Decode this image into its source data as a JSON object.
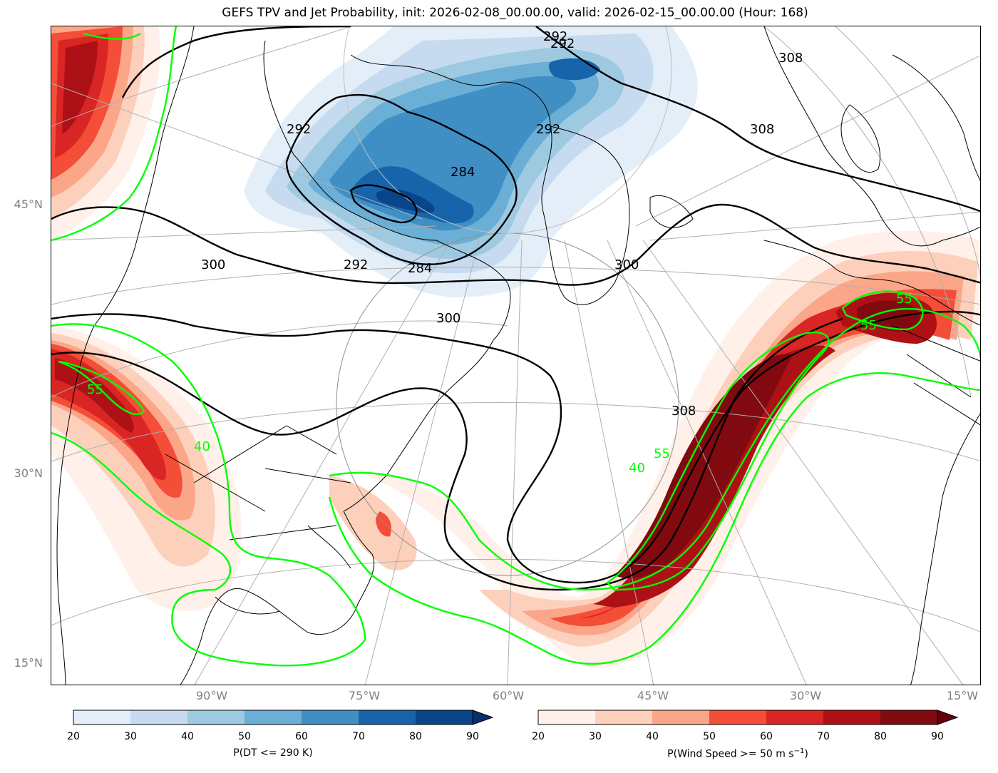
{
  "title": "GEFS TPV and Jet Probability, init: 2026-02-08_00.00.00, valid: 2026-02-15_00.00.00 (Hour: 168)",
  "lat_labels": [
    "45°N",
    "30°N",
    "15°N"
  ],
  "lon_labels": [
    "90°W",
    "75°W",
    "60°W",
    "45°W",
    "30°W",
    "15°W"
  ],
  "colorbars": {
    "tpv": {
      "label": "P(DT <= 290 K)",
      "ticks": [
        "20",
        "30",
        "40",
        "50",
        "60",
        "70",
        "80",
        "90"
      ],
      "colors": [
        "#e3eef9",
        "#c6dbef",
        "#9ecae1",
        "#6baed6",
        "#3f8fc5",
        "#1764ab",
        "#08458a"
      ],
      "extend": "max",
      "extend_color": "#08306b"
    },
    "jet": {
      "label_prefix": "P(Wind Speed >= 50 m s",
      "label_sup": "−1",
      "label_suffix": ")",
      "ticks": [
        "20",
        "30",
        "40",
        "50",
        "60",
        "70",
        "80",
        "90"
      ],
      "colors": [
        "#fff0e9",
        "#fdd0bc",
        "#fca689",
        "#f44d38",
        "#d92523",
        "#ad1116",
        "#800a10"
      ],
      "extend": "max",
      "extend_color": "#67000d"
    }
  },
  "contour_labels": {
    "theta": [
      "292",
      "292",
      "292",
      "284",
      "284",
      "292",
      "300",
      "300",
      "300",
      "308",
      "308",
      "308",
      "292"
    ],
    "wind": [
      "55",
      "40",
      "40",
      "55",
      "55",
      "55"
    ]
  },
  "colors": {
    "jet_contour": "#00ff00",
    "theta_contour": "#000000",
    "graticule": "#b0b0b0",
    "coast": "#000000"
  }
}
